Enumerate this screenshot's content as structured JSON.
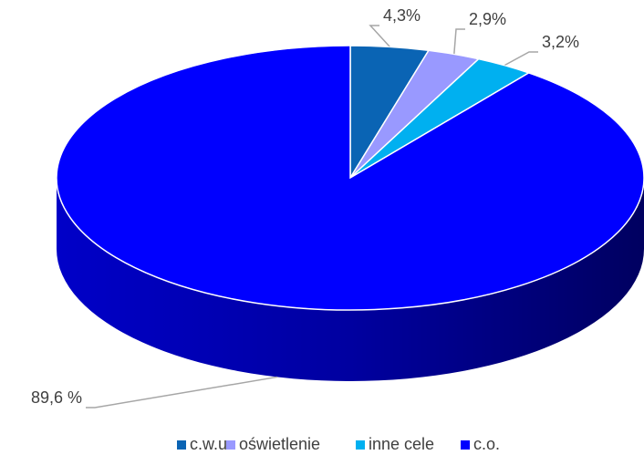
{
  "chart_data": {
    "type": "pie",
    "three_d": true,
    "categories": [
      "c.w.u.",
      "oświetlenie",
      "inne cele",
      "c.o."
    ],
    "values": [
      4.3,
      2.9,
      3.2,
      89.6
    ],
    "value_labels": [
      "4,3%",
      "2,9%",
      "3,2%",
      "89,6 %"
    ],
    "colors": [
      "#0a64b4",
      "#9999ff",
      "#00b0f0",
      "#0000ff"
    ],
    "legend": "bottom"
  }
}
